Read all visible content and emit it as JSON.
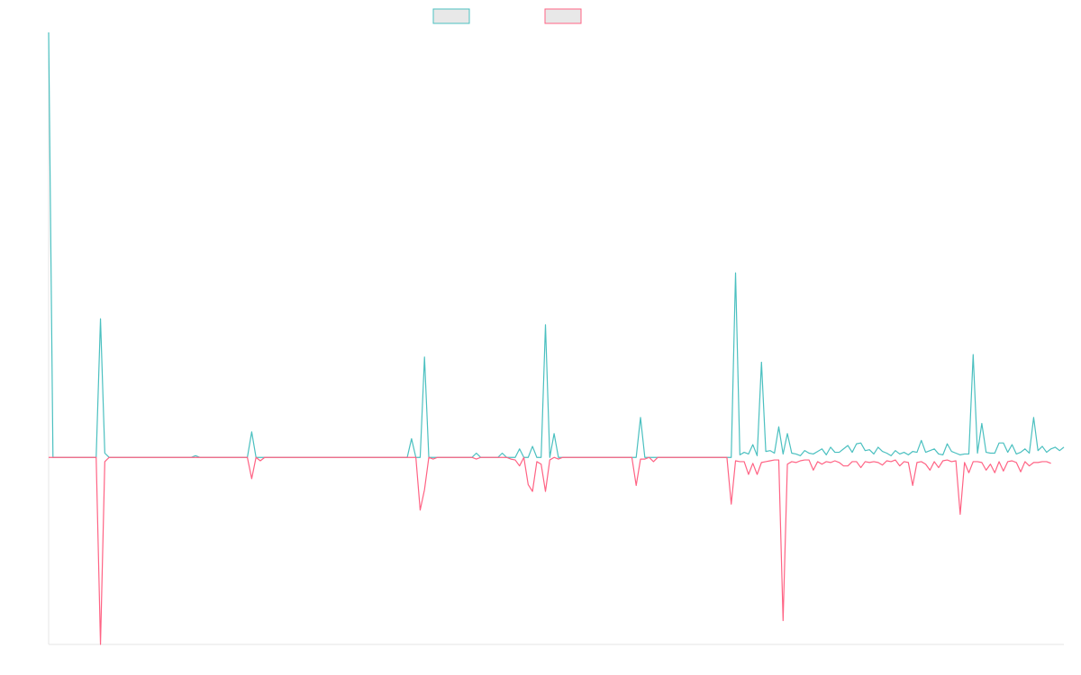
{
  "chart_data": {
    "type": "line",
    "title": "",
    "xlabel": "",
    "ylabel": "",
    "grid": false,
    "legend_position": "top",
    "ylim": [
      -2.2,
      5
    ],
    "series": [
      {
        "name": "",
        "color": "#4bc0c0",
        "fill": "#e8e8e8",
        "values": [
          5.0,
          0.0,
          0.0,
          0.0,
          0.0,
          0.0,
          0.0,
          0.0,
          0.0,
          0.0,
          0.0,
          0.0,
          1.63,
          0.05,
          0.0,
          0.0,
          0.0,
          0.0,
          0.0,
          0.0,
          0.0,
          0.0,
          0.0,
          0.0,
          0.0,
          0.0,
          0.0,
          0.0,
          0.0,
          0.0,
          0.0,
          0.0,
          0.0,
          0.0,
          0.02,
          0.0,
          0.0,
          0.0,
          0.0,
          0.0,
          0.0,
          0.0,
          0.0,
          0.0,
          0.0,
          0.0,
          0.0,
          0.3,
          0.0,
          0.0,
          0.0,
          0.0,
          0.0,
          0.0,
          0.0,
          0.0,
          0.0,
          0.0,
          0.0,
          0.0,
          0.0,
          0.0,
          0.0,
          0.0,
          0.0,
          0.0,
          0.0,
          0.0,
          0.0,
          0.0,
          0.0,
          0.0,
          0.0,
          0.0,
          0.0,
          0.0,
          0.0,
          0.0,
          0.0,
          0.0,
          0.0,
          0.0,
          0.0,
          0.0,
          0.22,
          0.0,
          0.0,
          1.18,
          0.0,
          0.0,
          0.0,
          0.0,
          0.0,
          0.0,
          0.0,
          0.0,
          0.0,
          0.0,
          0.0,
          0.05,
          0.0,
          0.0,
          0.0,
          0.0,
          0.0,
          0.05,
          0.0,
          0.0,
          0.0,
          0.1,
          0.0,
          0.0,
          0.13,
          0.0,
          0.0,
          1.56,
          0.0,
          0.28,
          0.0,
          0.0,
          0.0,
          0.0,
          0.0,
          0.0,
          0.0,
          0.0,
          0.0,
          0.0,
          0.0,
          0.0,
          0.0,
          0.0,
          0.0,
          0.0,
          0.0,
          0.0,
          0.0,
          0.47,
          0.0,
          0.0,
          0.0,
          0.0,
          0.0,
          0.0,
          0.0,
          0.0,
          0.0,
          0.0,
          0.0,
          0.0,
          0.0,
          0.0,
          0.0,
          0.0,
          0.0,
          0.0,
          0.0,
          0.0,
          0.0,
          2.17,
          0.03,
          0.06,
          0.04,
          0.15,
          0.02,
          1.12,
          0.07,
          0.08,
          0.05,
          0.36,
          0.04,
          0.28,
          0.05,
          0.04,
          0.02,
          0.08,
          0.05,
          0.04,
          0.07,
          0.1,
          0.03,
          0.12,
          0.06,
          0.06,
          0.1,
          0.14,
          0.06,
          0.16,
          0.17,
          0.08,
          0.09,
          0.04,
          0.12,
          0.07,
          0.05,
          0.02,
          0.08,
          0.04,
          0.06,
          0.03,
          0.07,
          0.06,
          0.2,
          0.06,
          0.08,
          0.1,
          0.04,
          0.03,
          0.16,
          0.07,
          0.05,
          0.03,
          0.04,
          0.04,
          1.21,
          0.05,
          0.4,
          0.06,
          0.05,
          0.05,
          0.17,
          0.17,
          0.06,
          0.15,
          0.04,
          0.06,
          0.1,
          0.05,
          0.47,
          0.08,
          0.13,
          0.06,
          0.1,
          0.12,
          0.08,
          0.12
        ]
      },
      {
        "name": "",
        "color": "#ff6384",
        "fill": "#e8e8e8",
        "values": [
          0.0,
          0.0,
          0.0,
          0.0,
          0.0,
          0.0,
          0.0,
          0.0,
          0.0,
          0.0,
          0.0,
          0.0,
          -2.2,
          -0.05,
          0.0,
          0.0,
          0.0,
          0.0,
          0.0,
          0.0,
          0.0,
          0.0,
          0.0,
          0.0,
          0.0,
          0.0,
          0.0,
          0.0,
          0.0,
          0.0,
          0.0,
          0.0,
          0.0,
          0.0,
          0.0,
          0.0,
          0.0,
          0.0,
          0.0,
          0.0,
          0.0,
          0.0,
          0.0,
          0.0,
          0.0,
          0.0,
          0.0,
          -0.25,
          0.0,
          -0.04,
          0.0,
          0.0,
          0.0,
          0.0,
          0.0,
          0.0,
          0.0,
          0.0,
          0.0,
          0.0,
          0.0,
          0.0,
          0.0,
          0.0,
          0.0,
          0.0,
          0.0,
          0.0,
          0.0,
          0.0,
          0.0,
          0.0,
          0.0,
          0.0,
          0.0,
          0.0,
          0.0,
          0.0,
          0.0,
          0.0,
          0.0,
          0.0,
          0.0,
          0.0,
          0.0,
          0.0,
          -0.62,
          -0.38,
          0.0,
          -0.02,
          0.0,
          0.0,
          0.0,
          0.0,
          0.0,
          0.0,
          0.0,
          0.0,
          0.0,
          -0.02,
          0.0,
          0.0,
          0.0,
          0.0,
          0.0,
          0.0,
          0.0,
          -0.02,
          -0.03,
          -0.1,
          0.0,
          -0.32,
          -0.4,
          -0.05,
          -0.08,
          -0.4,
          -0.03,
          0.0,
          -0.02,
          0.0,
          0.0,
          0.0,
          0.0,
          0.0,
          0.0,
          0.0,
          0.0,
          0.0,
          0.0,
          0.0,
          0.0,
          0.0,
          0.0,
          0.0,
          0.0,
          0.0,
          -0.33,
          -0.02,
          -0.02,
          0.0,
          -0.05,
          0.0,
          0.0,
          0.0,
          0.0,
          0.0,
          0.0,
          0.0,
          0.0,
          0.0,
          0.0,
          0.0,
          0.0,
          0.0,
          0.0,
          0.0,
          0.0,
          0.0,
          -0.55,
          -0.04,
          -0.05,
          -0.05,
          -0.2,
          -0.07,
          -0.2,
          -0.06,
          -0.05,
          -0.04,
          -0.03,
          -0.03,
          -1.92,
          -0.08,
          -0.05,
          -0.06,
          -0.04,
          -0.03,
          -0.03,
          -0.15,
          -0.05,
          -0.08,
          -0.05,
          -0.06,
          -0.04,
          -0.06,
          -0.1,
          -0.1,
          -0.05,
          -0.05,
          -0.12,
          -0.05,
          -0.06,
          -0.05,
          -0.06,
          -0.09,
          -0.04,
          -0.05,
          -0.03,
          -0.1,
          -0.05,
          -0.06,
          -0.33,
          -0.06,
          -0.05,
          -0.08,
          -0.15,
          -0.05,
          -0.12,
          -0.04,
          -0.03,
          -0.05,
          -0.04,
          -0.67,
          -0.06,
          -0.18,
          -0.05,
          -0.05,
          -0.06,
          -0.15,
          -0.08,
          -0.18,
          -0.05,
          -0.16,
          -0.05,
          -0.04,
          -0.06,
          -0.17,
          -0.05,
          -0.1,
          -0.06,
          -0.06,
          -0.05,
          -0.05,
          -0.07
        ]
      }
    ]
  }
}
